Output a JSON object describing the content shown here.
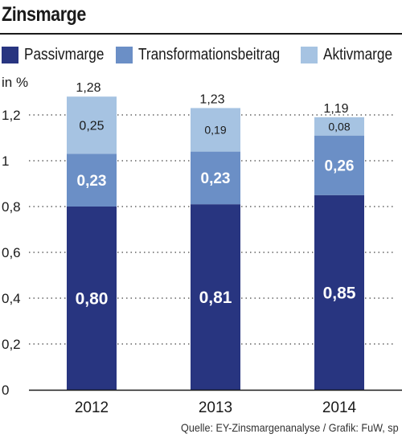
{
  "chart_data": {
    "type": "bar",
    "stacked": true,
    "title": "Zinsmarge",
    "ylabel": "in %",
    "categories": [
      "2012",
      "2013",
      "2014"
    ],
    "ylim": [
      0,
      1.2
    ],
    "yticks": [
      {
        "value": 0,
        "label": "0"
      },
      {
        "value": 0.2,
        "label": "0,2"
      },
      {
        "value": 0.4,
        "label": "0,4"
      },
      {
        "value": 0.6,
        "label": "0,6"
      },
      {
        "value": 0.8,
        "label": "0,8"
      },
      {
        "value": 1.0,
        "label": "1"
      },
      {
        "value": 1.2,
        "label": "1,2"
      }
    ],
    "grid": "dotted-horizontal",
    "legend_position": "top",
    "series": [
      {
        "name": "Passivmarge",
        "color": "#283580",
        "values": [
          0.8,
          0.81,
          0.85
        ],
        "labels": [
          "0,80",
          "0,81",
          "0,85"
        ]
      },
      {
        "name": "Transformationsbeitrag",
        "color": "#6b8fc6",
        "values": [
          0.23,
          0.23,
          0.26
        ],
        "labels": [
          "0,23",
          "0,23",
          "0,26"
        ]
      },
      {
        "name": "Aktivmarge",
        "color": "#a6c3e2",
        "values": [
          0.25,
          0.19,
          0.08
        ],
        "labels": [
          "0,25",
          "0,19",
          "0,08"
        ]
      }
    ],
    "totals": [
      1.28,
      1.23,
      1.19
    ],
    "total_labels": [
      "1,28",
      "1,23",
      "1,19"
    ]
  },
  "source": "Quelle: EY-Zinsmargenanalyse / Grafik: FuW, sp"
}
